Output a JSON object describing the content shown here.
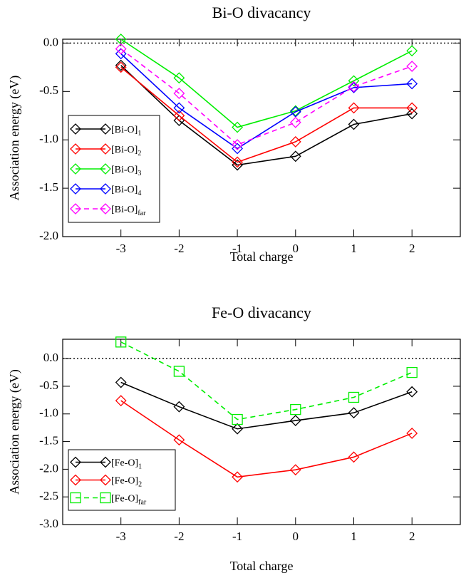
{
  "chart_data": [
    {
      "type": "line",
      "title": "Bi-O divacancy",
      "xlabel": "Total charge",
      "ylabel": "Association energy (eV)",
      "x": [
        -3,
        -2,
        -1,
        0,
        1,
        2
      ],
      "xlim": [
        -4,
        2.83
      ],
      "xticks": [
        -3,
        -2,
        -1,
        0,
        1,
        2
      ],
      "ylim": [
        -2,
        0.04
      ],
      "yticks": [
        {
          "value": -2,
          "label": "-2.0"
        },
        {
          "value": -1.5,
          "label": "-1.5"
        },
        {
          "value": -1,
          "label": "-1.0"
        },
        {
          "value": -0.5,
          "label": "-0.5"
        },
        {
          "value": 0,
          "label": "0.0"
        }
      ],
      "zero_line": true,
      "legend": "lower left",
      "series": [
        {
          "name": "[Bi-O]",
          "subscript": "1",
          "color": "#000000",
          "marker": "diamond",
          "dashed": false,
          "values": [
            -0.23,
            -0.8,
            -1.26,
            -1.17,
            -0.84,
            -0.73
          ]
        },
        {
          "name": "[Bi-O]",
          "subscript": "2",
          "color": "#ff0000",
          "marker": "diamond",
          "dashed": false,
          "values": [
            -0.25,
            -0.75,
            -1.23,
            -1.02,
            -0.67,
            -0.67
          ]
        },
        {
          "name": "[Bi-O]",
          "subscript": "3",
          "color": "#00ee00",
          "marker": "diamond",
          "dashed": false,
          "values": [
            0.04,
            -0.36,
            -0.87,
            -0.7,
            -0.39,
            -0.08
          ]
        },
        {
          "name": "[Bi-O]",
          "subscript": "4",
          "color": "#0000ff",
          "marker": "diamond",
          "dashed": false,
          "values": [
            -0.11,
            -0.67,
            -1.09,
            -0.71,
            -0.46,
            -0.42
          ]
        },
        {
          "name": "[Bi-O]",
          "subscript": "far",
          "color": "#ff00ff",
          "marker": "diamond",
          "dashed": true,
          "values": [
            -0.06,
            -0.52,
            -1.05,
            -0.82,
            -0.45,
            -0.24
          ]
        }
      ]
    },
    {
      "type": "line",
      "title": "Fe-O divacancy",
      "xlabel": "Total charge",
      "ylabel": "Association energy (eV)",
      "x": [
        -3,
        -2,
        -1,
        0,
        1,
        2
      ],
      "xlim": [
        -4,
        2.83
      ],
      "xticks": [
        -3,
        -2,
        -1,
        0,
        1,
        2
      ],
      "ylim": [
        -3,
        0.35
      ],
      "yticks": [
        {
          "value": -3,
          "label": "-3.0"
        },
        {
          "value": -2.5,
          "label": "-2.5"
        },
        {
          "value": -2,
          "label": "-2.0"
        },
        {
          "value": -1.5,
          "label": "-1.5"
        },
        {
          "value": -1,
          "label": "-1.0"
        },
        {
          "value": -0.5,
          "label": "-0.5"
        },
        {
          "value": 0,
          "label": "0.0"
        }
      ],
      "zero_line": true,
      "legend": "lower left",
      "series": [
        {
          "name": "[Fe-O]",
          "subscript": "1",
          "color": "#000000",
          "marker": "diamond",
          "dashed": false,
          "values": [
            -0.43,
            -0.87,
            -1.27,
            -1.12,
            -0.98,
            -0.6
          ]
        },
        {
          "name": "[Fe-O]",
          "subscript": "2",
          "color": "#ff0000",
          "marker": "diamond",
          "dashed": false,
          "values": [
            -0.76,
            -1.47,
            -2.14,
            -2.01,
            -1.78,
            -1.35
          ]
        },
        {
          "name": "[Fe-O]",
          "subscript": "far",
          "color": "#00ee00",
          "marker": "square",
          "dashed": true,
          "values": [
            0.3,
            -0.23,
            -1.1,
            -0.92,
            -0.7,
            -0.25
          ]
        }
      ]
    }
  ]
}
